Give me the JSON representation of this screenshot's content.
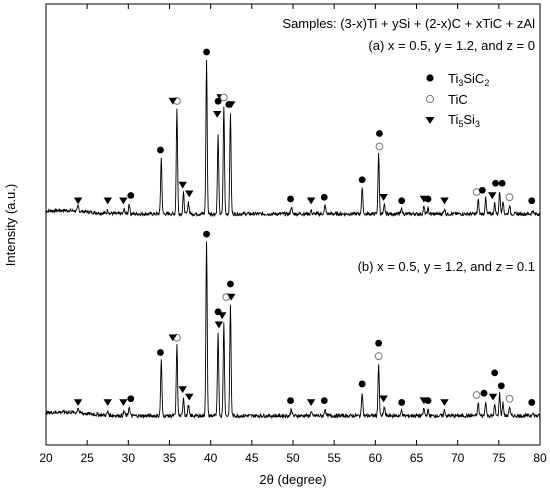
{
  "chart_data": {
    "type": "line",
    "xlabel": "2θ (degree)",
    "ylabel": "Intensity (a.u.)",
    "xlim": [
      20,
      80
    ],
    "x_ticks": [
      "20",
      "25",
      "30",
      "35",
      "40",
      "45",
      "50",
      "55",
      "60",
      "65",
      "70",
      "75",
      "80"
    ],
    "grid": false,
    "legend_position": "top-right",
    "samples_label": "Samples: (3-x)Ti + ySi + (2-x)C + xTiC + zAl",
    "legend": [
      {
        "base": "Ti",
        "sub1": "3",
        "mid": "SiC",
        "sub2": "2",
        "marker": "filled-circle"
      },
      {
        "base": "TiC",
        "sub1": "",
        "mid": "",
        "sub2": "",
        "marker": "open-circle"
      },
      {
        "base": "Ti",
        "sub1": "5",
        "mid": "Si",
        "sub2": "3",
        "marker": "filled-triangle-down"
      }
    ],
    "series": [
      {
        "name": "(a) x = 0.5, y = 1.2, and  z = 0",
        "peaks": [
          [
            23.9,
            0.03
          ],
          [
            27.5,
            0.02
          ],
          [
            29.5,
            0.025
          ],
          [
            30.1,
            0.06
          ],
          [
            34.0,
            0.32
          ],
          [
            35.9,
            0.6
          ],
          [
            36.7,
            0.12
          ],
          [
            37.3,
            0.07
          ],
          [
            39.5,
            0.88
          ],
          [
            40.9,
            0.45
          ],
          [
            41.6,
            0.62
          ],
          [
            42.4,
            0.58
          ],
          [
            49.8,
            0.04
          ],
          [
            52.2,
            0.02
          ],
          [
            53.9,
            0.05
          ],
          [
            58.4,
            0.15
          ],
          [
            60.4,
            0.34
          ],
          [
            61.1,
            0.05
          ],
          [
            63.2,
            0.03
          ],
          [
            65.9,
            0.04
          ],
          [
            66.4,
            0.03
          ],
          [
            68.4,
            0.03
          ],
          [
            72.5,
            0.08
          ],
          [
            73.4,
            0.09
          ],
          [
            74.5,
            0.06
          ],
          [
            75.1,
            0.13
          ],
          [
            75.5,
            0.08
          ],
          [
            76.3,
            0.05
          ],
          [
            79.1,
            0.02
          ]
        ]
      },
      {
        "name": "(b) x = 0.5, y = 1.2, and  z = 0.1",
        "peaks": [
          [
            23.9,
            0.03
          ],
          [
            27.5,
            0.02
          ],
          [
            29.5,
            0.025
          ],
          [
            30.1,
            0.05
          ],
          [
            34.0,
            0.3
          ],
          [
            35.9,
            0.38
          ],
          [
            36.7,
            0.1
          ],
          [
            37.3,
            0.06
          ],
          [
            39.5,
            0.94
          ],
          [
            40.9,
            0.45
          ],
          [
            41.6,
            0.5
          ],
          [
            42.4,
            0.6
          ],
          [
            49.8,
            0.04
          ],
          [
            52.2,
            0.02
          ],
          [
            53.9,
            0.04
          ],
          [
            58.4,
            0.13
          ],
          [
            60.4,
            0.28
          ],
          [
            61.1,
            0.05
          ],
          [
            63.2,
            0.03
          ],
          [
            65.9,
            0.04
          ],
          [
            66.4,
            0.03
          ],
          [
            68.4,
            0.03
          ],
          [
            72.5,
            0.07
          ],
          [
            73.4,
            0.08
          ],
          [
            74.5,
            0.06
          ],
          [
            75.1,
            0.12
          ],
          [
            75.5,
            0.07
          ],
          [
            76.3,
            0.05
          ],
          [
            79.1,
            0.02
          ]
        ]
      }
    ],
    "markers": [
      {
        "series": 0,
        "items": [
          {
            "x": 23.9,
            "t": "tri"
          },
          {
            "x": 27.5,
            "t": "tri"
          },
          {
            "x": 29.4,
            "t": "tri"
          },
          {
            "x": 30.3,
            "t": "fill"
          },
          {
            "x": 33.9,
            "t": "fill"
          },
          {
            "x": 35.9,
            "t": "open"
          },
          {
            "x": 35.4,
            "t": "tri"
          },
          {
            "x": 36.6,
            "t": "tri"
          },
          {
            "x": 37.4,
            "t": "tri"
          },
          {
            "x": 39.5,
            "t": "fill"
          },
          {
            "x": 41.2,
            "t": "tri"
          },
          {
            "x": 41.6,
            "t": "open"
          },
          {
            "x": 40.8,
            "t": "tri"
          },
          {
            "x": 40.9,
            "t": "fill"
          },
          {
            "x": 42.5,
            "t": "tri"
          },
          {
            "x": 42.2,
            "t": "fill"
          },
          {
            "x": 49.7,
            "t": "fill"
          },
          {
            "x": 52.2,
            "t": "tri"
          },
          {
            "x": 53.8,
            "t": "fill"
          },
          {
            "x": 58.4,
            "t": "fill"
          },
          {
            "x": 60.5,
            "t": "open"
          },
          {
            "x": 60.5,
            "t": "fill"
          },
          {
            "x": 61.0,
            "t": "tri"
          },
          {
            "x": 63.2,
            "t": "fill"
          },
          {
            "x": 65.9,
            "t": "tri"
          },
          {
            "x": 66.4,
            "t": "fill"
          },
          {
            "x": 68.4,
            "t": "tri"
          },
          {
            "x": 72.3,
            "t": "open"
          },
          {
            "x": 73.0,
            "t": "fill"
          },
          {
            "x": 74.2,
            "t": "tri"
          },
          {
            "x": 74.6,
            "t": "fill"
          },
          {
            "x": 75.4,
            "t": "fill"
          },
          {
            "x": 76.3,
            "t": "open"
          },
          {
            "x": 79.0,
            "t": "fill"
          }
        ]
      },
      {
        "series": 1,
        "items": [
          {
            "x": 23.9,
            "t": "tri"
          },
          {
            "x": 27.5,
            "t": "tri"
          },
          {
            "x": 29.4,
            "t": "tri"
          },
          {
            "x": 30.3,
            "t": "fill"
          },
          {
            "x": 33.9,
            "t": "fill"
          },
          {
            "x": 35.9,
            "t": "open"
          },
          {
            "x": 35.4,
            "t": "tri"
          },
          {
            "x": 36.6,
            "t": "tri"
          },
          {
            "x": 37.4,
            "t": "tri"
          },
          {
            "x": 39.5,
            "t": "fill"
          },
          {
            "x": 41.0,
            "t": "tri"
          },
          {
            "x": 41.4,
            "t": "tri"
          },
          {
            "x": 41.9,
            "t": "open"
          },
          {
            "x": 40.9,
            "t": "fill"
          },
          {
            "x": 42.5,
            "t": "tri"
          },
          {
            "x": 42.4,
            "t": "fill"
          },
          {
            "x": 49.7,
            "t": "fill"
          },
          {
            "x": 52.2,
            "t": "tri"
          },
          {
            "x": 53.8,
            "t": "fill"
          },
          {
            "x": 58.4,
            "t": "fill"
          },
          {
            "x": 60.4,
            "t": "open"
          },
          {
            "x": 60.4,
            "t": "fill"
          },
          {
            "x": 61.0,
            "t": "tri"
          },
          {
            "x": 63.2,
            "t": "fill"
          },
          {
            "x": 65.9,
            "t": "tri"
          },
          {
            "x": 66.4,
            "t": "fill"
          },
          {
            "x": 68.4,
            "t": "tri"
          },
          {
            "x": 72.3,
            "t": "open"
          },
          {
            "x": 73.2,
            "t": "fill"
          },
          {
            "x": 74.3,
            "t": "tri"
          },
          {
            "x": 74.5,
            "t": "fill"
          },
          {
            "x": 75.3,
            "t": "fill"
          },
          {
            "x": 76.3,
            "t": "open"
          },
          {
            "x": 79.0,
            "t": "fill"
          }
        ]
      }
    ]
  }
}
